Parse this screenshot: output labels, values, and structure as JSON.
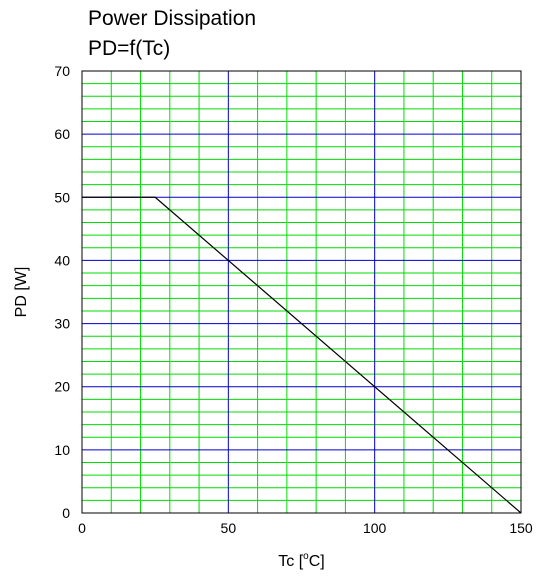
{
  "chart_data": {
    "type": "line",
    "title": "Power Dissipation",
    "subtitle": "PD=f(Tc)",
    "xlabel_prefix": "Tc [",
    "xlabel_sup": "o",
    "xlabel_suffix": "C]",
    "ylabel": "PD [W]",
    "xlim": [
      0,
      150
    ],
    "ylim": [
      0,
      70
    ],
    "x_ticks": [
      0,
      50,
      100,
      150
    ],
    "y_ticks": [
      0,
      10,
      20,
      30,
      40,
      50,
      60,
      70
    ],
    "major_grid_color": "#0000cc",
    "minor_grid_color": "#00dd00",
    "line_color": "#000000",
    "series": [
      {
        "x": [
          0,
          25,
          150
        ],
        "y": [
          50,
          50,
          0
        ]
      }
    ]
  }
}
